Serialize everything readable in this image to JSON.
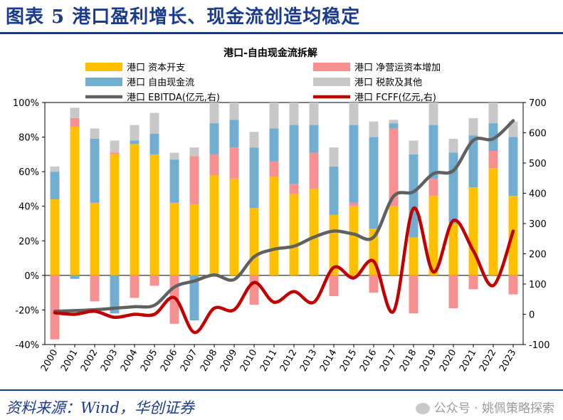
{
  "header": {
    "title": "图表 5  港口盈利增长、现金流创造均稳定"
  },
  "footer": {
    "source": "资料来源：Wind，华创证券",
    "watermark": "公众号 · 姚佩策略探索"
  },
  "colors": {
    "capex": "#FFC000",
    "fcf": "#70ADD0",
    "wc": "#F79191",
    "tax": "#C8C8C8",
    "ebitda": "#606060",
    "fcff": "#C00000",
    "brand": "#1a3a8c"
  },
  "chart_data": {
    "type": "bar",
    "title": "港口-自由现金流拆解",
    "categories": [
      "2000",
      "2001",
      "2002",
      "2003",
      "2004",
      "2005",
      "2006",
      "2007",
      "2008",
      "2009",
      "2010",
      "2011",
      "2012",
      "2013",
      "2014",
      "2015",
      "2016",
      "2017",
      "2018",
      "2019",
      "2020",
      "2021",
      "2022",
      "2023"
    ],
    "yleft": {
      "lim": [
        -40,
        100
      ],
      "ticks": [
        "-40%",
        "-20%",
        "0%",
        "20%",
        "40%",
        "60%",
        "80%",
        "100%"
      ]
    },
    "yright": {
      "lim": [
        -100,
        700
      ],
      "ticks": [
        "-100",
        "0",
        "100",
        "200",
        "300",
        "400",
        "500",
        "600",
        "700"
      ]
    },
    "legend": [
      "港口 资本开支",
      "港口 净营运资本增加",
      "港口 自由现金流",
      "港口 税款及其他",
      "港口 EBITDA(亿元,右)",
      "港口 FCFF(亿元,右)"
    ],
    "series": [
      {
        "name": "港口 资本开支",
        "axis": "left",
        "values": [
          44,
          86,
          42,
          70,
          76,
          70,
          42,
          41,
          58,
          56,
          39,
          57,
          47,
          50,
          35,
          40,
          27,
          40,
          22,
          46,
          30,
          51,
          62,
          46
        ]
      },
      {
        "name": "港口 净营运资本增加",
        "axis": "left",
        "values": [
          -37,
          5,
          -15,
          1,
          -13,
          -6,
          -28,
          28,
          12,
          18,
          -17,
          9,
          6,
          21,
          -12,
          2,
          -10,
          45,
          -22,
          10,
          -19,
          -8,
          10,
          -11
        ]
      },
      {
        "name": "港口 自由现金流",
        "axis": "left",
        "values": [
          16,
          -2,
          37,
          -22,
          2,
          12,
          25,
          -26,
          18,
          16,
          35,
          19,
          34,
          16,
          28,
          45,
          53,
          3,
          48,
          31,
          41,
          30,
          16,
          34
        ]
      },
      {
        "name": "港口 税款及其他",
        "axis": "left",
        "values": [
          3,
          6,
          6,
          7,
          9,
          12,
          4,
          5,
          12,
          10,
          9,
          15,
          13,
          13,
          11,
          13,
          9,
          2,
          8,
          13,
          8,
          10,
          12,
          9
        ]
      },
      {
        "name": "港口 EBITDA(亿元,右)",
        "axis": "right",
        "values": [
          10,
          12,
          15,
          20,
          25,
          30,
          90,
          110,
          130,
          115,
          190,
          215,
          225,
          255,
          275,
          265,
          255,
          390,
          405,
          465,
          475,
          575,
          580,
          640
        ]
      },
      {
        "name": "港口 FCFF(亿元,右)",
        "axis": "right",
        "values": [
          5,
          0,
          10,
          -10,
          0,
          0,
          55,
          -60,
          20,
          15,
          105,
          40,
          75,
          40,
          155,
          120,
          175,
          10,
          350,
          140,
          310,
          210,
          95,
          275
        ]
      }
    ]
  }
}
